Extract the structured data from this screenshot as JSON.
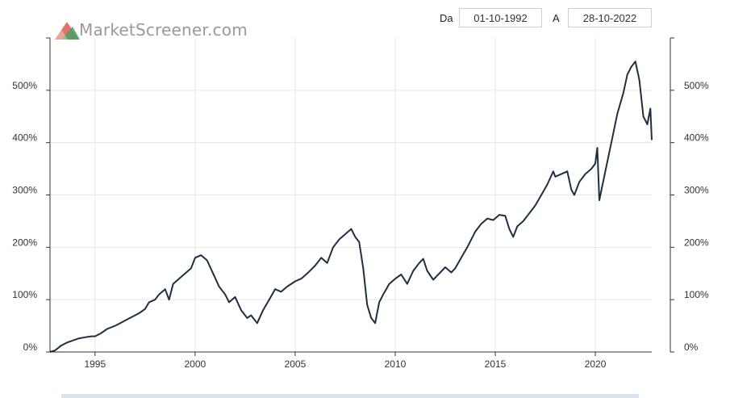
{
  "header": {
    "logo_text": "MarketScreener.com",
    "from_label": "Da",
    "from_value": "01-10-1992",
    "to_label": "A",
    "to_value": "28-10-2022"
  },
  "colors": {
    "line": "#1f2f42",
    "grid": "#e6e6e6",
    "axis": "#333333",
    "logo_red": "#e05a4f",
    "logo_green": "#4aa06a"
  },
  "chart_data": {
    "type": "line",
    "title": "",
    "xlabel": "",
    "ylabel": "",
    "xlim": [
      1992.75,
      2022.82
    ],
    "ylim": [
      0,
      600
    ],
    "x_ticks": [
      1995,
      2000,
      2005,
      2010,
      2015,
      2020
    ],
    "x_tick_labels": [
      "1995",
      "2000",
      "2005",
      "2010",
      "2015",
      "2020"
    ],
    "y_ticks": [
      0,
      100,
      200,
      300,
      400,
      500
    ],
    "y_tick_labels": [
      "0%",
      "100%",
      "200%",
      "300%",
      "400%",
      "500%"
    ],
    "grid": true,
    "series": [
      {
        "x": [
          1992.75,
          1993.0,
          1993.3,
          1993.6,
          1993.9,
          1994.2,
          1994.5,
          1994.8,
          1995.0,
          1995.3,
          1995.6,
          1996.0,
          1996.3,
          1996.6,
          1996.9,
          1997.2,
          1997.5,
          1997.7,
          1998.0,
          1998.2,
          1998.5,
          1998.7,
          1998.9,
          1999.2,
          1999.5,
          1999.8,
          2000.0,
          2000.3,
          2000.6,
          2000.9,
          2001.2,
          2001.5,
          2001.7,
          2002.0,
          2002.3,
          2002.6,
          2002.8,
          2003.1,
          2003.4,
          2003.7,
          2004.0,
          2004.3,
          2004.6,
          2005.0,
          2005.3,
          2005.6,
          2006.0,
          2006.3,
          2006.6,
          2006.9,
          2007.2,
          2007.5,
          2007.8,
          2008.0,
          2008.2,
          2008.4,
          2008.6,
          2008.8,
          2009.0,
          2009.2,
          2009.4,
          2009.7,
          2010.0,
          2010.3,
          2010.6,
          2010.9,
          2011.2,
          2011.4,
          2011.6,
          2011.9,
          2012.2,
          2012.5,
          2012.8,
          2013.0,
          2013.3,
          2013.6,
          2014.0,
          2014.3,
          2014.6,
          2014.9,
          2015.2,
          2015.5,
          2015.7,
          2015.9,
          2016.1,
          2016.4,
          2016.7,
          2017.0,
          2017.3,
          2017.6,
          2017.9,
          2018.0,
          2018.3,
          2018.6,
          2018.8,
          2018.95,
          2019.2,
          2019.5,
          2019.8,
          2020.0,
          2020.1,
          2020.2,
          2020.5,
          2020.8,
          2021.1,
          2021.4,
          2021.6,
          2021.8,
          2022.0,
          2022.2,
          2022.4,
          2022.6,
          2022.75,
          2022.82
        ],
        "values": [
          0,
          3,
          12,
          18,
          22,
          26,
          28,
          30,
          30,
          36,
          44,
          50,
          56,
          62,
          68,
          74,
          82,
          95,
          100,
          110,
          120,
          100,
          130,
          140,
          150,
          160,
          180,
          185,
          175,
          150,
          125,
          110,
          95,
          105,
          80,
          65,
          70,
          55,
          80,
          100,
          120,
          115,
          125,
          135,
          140,
          150,
          165,
          180,
          170,
          200,
          215,
          225,
          235,
          220,
          210,
          160,
          90,
          65,
          55,
          95,
          110,
          130,
          140,
          148,
          130,
          155,
          170,
          178,
          155,
          138,
          150,
          162,
          152,
          160,
          180,
          200,
          230,
          245,
          255,
          252,
          262,
          260,
          235,
          220,
          240,
          250,
          265,
          280,
          300,
          320,
          345,
          335,
          340,
          345,
          310,
          300,
          325,
          340,
          350,
          360,
          390,
          290,
          345,
          400,
          455,
          495,
          530,
          545,
          555,
          520,
          450,
          435,
          465,
          405
        ]
      }
    ]
  }
}
